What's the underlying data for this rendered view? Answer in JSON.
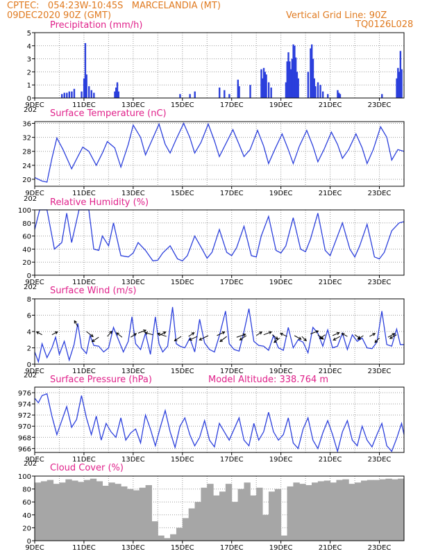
{
  "header": {
    "line1": "CPTEC:   054:23W-10:45S   MARCELANDIA (MT)",
    "line2": "09DEC2020 90Z (GMT)",
    "grid_note": "Vertical Grid Line: 90Z",
    "run_code": "TQ0126L028"
  },
  "colors": {
    "line": "#2b3fdc",
    "cloud": "#a6a6a6",
    "title": "#e0208a",
    "header": "#e07a1f"
  },
  "chart_data": [
    {
      "type": "bar",
      "title": "Precipitation (mm/h)",
      "ylim": [
        0,
        5
      ],
      "yticks": [
        0,
        1,
        2,
        3,
        4,
        5
      ],
      "xtick_labels": [
        "9DEC",
        "11DEC",
        "13DEC",
        "15DEC",
        "17DEC",
        "19DEC",
        "21DEC",
        "23DEC"
      ],
      "x_start_label": "202",
      "x_range_days": [
        9.0,
        24.0
      ],
      "x": [
        10.1,
        10.2,
        10.3,
        10.4,
        10.5,
        10.6,
        10.9,
        11.0,
        11.05,
        11.1,
        11.2,
        11.3,
        11.4,
        12.25,
        12.3,
        12.35,
        12.4,
        14.9,
        15.3,
        15.5,
        16.5,
        16.7,
        16.9,
        17.25,
        17.3,
        17.75,
        18.2,
        18.25,
        18.3,
        18.35,
        18.4,
        18.5,
        18.6,
        19.2,
        19.25,
        19.3,
        19.35,
        19.4,
        19.45,
        19.5,
        19.55,
        19.6,
        19.65,
        19.7,
        20.1,
        20.2,
        20.25,
        20.3,
        20.35,
        20.4,
        20.5,
        20.6,
        20.7,
        20.9,
        21.3,
        21.35,
        21.4,
        23.1,
        23.7,
        23.75,
        23.8,
        23.85,
        23.9
      ],
      "values": [
        0.3,
        0.4,
        0.4,
        0.5,
        0.5,
        0.7,
        0.5,
        1.5,
        4.2,
        1.8,
        0.9,
        0.6,
        0.4,
        0.5,
        0.8,
        1.2,
        0.5,
        0.3,
        0.3,
        0.5,
        0.8,
        0.6,
        0.3,
        1.4,
        0.9,
        1.0,
        2.2,
        1.5,
        2.3,
        2.0,
        1.8,
        1.2,
        0.8,
        1.2,
        2.8,
        3.5,
        2.8,
        2.2,
        3.0,
        4.1,
        4.0,
        3.1,
        2.0,
        1.5,
        2.0,
        3.8,
        4.1,
        3.0,
        1.5,
        0.9,
        1.2,
        1.0,
        0.5,
        0.3,
        0.6,
        0.4,
        0.3,
        0.3,
        1.5,
        2.3,
        2.0,
        3.6,
        2.2
      ]
    },
    {
      "type": "line",
      "title": "Surface Temperature (nC)",
      "ylim": [
        18,
        36.5
      ],
      "yticks": [
        20,
        24,
        28,
        32,
        36
      ],
      "xtick_labels": [
        "9DEC",
        "11DEC",
        "13DEC",
        "15DEC",
        "17DEC",
        "19DEC",
        "21DEC",
        "23DEC"
      ],
      "x_start_label": "202",
      "x_range_days": [
        9.0,
        24.0
      ],
      "x": [
        9.0,
        9.3,
        9.5,
        9.7,
        9.9,
        10.15,
        10.5,
        10.75,
        10.95,
        11.2,
        11.5,
        11.75,
        11.95,
        12.25,
        12.5,
        12.8,
        13.0,
        13.3,
        13.5,
        13.75,
        14.05,
        14.3,
        14.5,
        14.75,
        15.05,
        15.3,
        15.5,
        15.75,
        16.05,
        16.3,
        16.5,
        16.75,
        17.05,
        17.3,
        17.5,
        17.75,
        18.05,
        18.3,
        18.5,
        18.75,
        19.05,
        19.3,
        19.5,
        19.75,
        20.05,
        20.3,
        20.5,
        20.75,
        21.05,
        21.3,
        21.5,
        21.75,
        22.05,
        22.3,
        22.5,
        22.75,
        23.05,
        23.3,
        23.5,
        23.75,
        24.0
      ],
      "values": [
        20.5,
        19.5,
        19.2,
        26.0,
        31.8,
        28.5,
        23.0,
        26.5,
        29.2,
        28.0,
        24.0,
        27.5,
        30.8,
        29.0,
        23.5,
        30.0,
        35.5,
        32.0,
        27.0,
        31.0,
        35.8,
        30.0,
        27.5,
        31.5,
        36.0,
        32.0,
        27.5,
        30.5,
        35.8,
        31.0,
        26.5,
        30.0,
        34.2,
        30.0,
        26.5,
        28.5,
        34.0,
        29.5,
        24.5,
        28.5,
        33.0,
        28.5,
        24.5,
        29.5,
        34.0,
        29.5,
        25.0,
        28.5,
        33.5,
        30.0,
        26.0,
        28.5,
        33.0,
        29.0,
        24.5,
        28.5,
        35.0,
        32.0,
        25.5,
        28.5,
        28.0
      ]
    },
    {
      "type": "line",
      "title": "Relative Humidity (%)",
      "ylim": [
        0,
        100
      ],
      "yticks": [
        0,
        20,
        40,
        60,
        80,
        100
      ],
      "xtick_labels": [
        "9DEC",
        "11DEC",
        "13DEC",
        "15DEC",
        "17DEC",
        "19DEC",
        "21DEC",
        "23DEC"
      ],
      "x_start_label": "202",
      "x_range_days": [
        9.0,
        24.0
      ],
      "x": [
        9.0,
        9.2,
        9.5,
        9.8,
        10.1,
        10.3,
        10.5,
        10.8,
        11.0,
        11.2,
        11.4,
        11.6,
        11.75,
        12.0,
        12.2,
        12.5,
        12.8,
        13.0,
        13.2,
        13.5,
        13.8,
        14.0,
        14.2,
        14.5,
        14.8,
        15.0,
        15.2,
        15.5,
        15.8,
        16.0,
        16.2,
        16.5,
        16.8,
        17.0,
        17.2,
        17.5,
        17.8,
        18.0,
        18.2,
        18.5,
        18.8,
        19.0,
        19.2,
        19.5,
        19.8,
        20.0,
        20.2,
        20.5,
        20.8,
        21.0,
        21.2,
        21.5,
        21.8,
        22.0,
        22.2,
        22.5,
        22.8,
        23.0,
        23.2,
        23.5,
        23.8,
        24.0
      ],
      "values": [
        70,
        100,
        100,
        40,
        50,
        95,
        50,
        100,
        100,
        100,
        40,
        38,
        60,
        45,
        80,
        30,
        28,
        34,
        50,
        38,
        22,
        23,
        34,
        45,
        25,
        22,
        30,
        60,
        40,
        26,
        35,
        70,
        35,
        30,
        42,
        75,
        30,
        28,
        60,
        90,
        38,
        34,
        45,
        88,
        40,
        36,
        55,
        95,
        38,
        30,
        50,
        80,
        40,
        28,
        45,
        78,
        28,
        25,
        35,
        68,
        80,
        82
      ]
    },
    {
      "type": "line",
      "title": "Surface Wind (m/s)",
      "ylim": [
        0,
        8
      ],
      "yticks": [
        0,
        2,
        4,
        6,
        8
      ],
      "xtick_labels": [
        "9DEC",
        "11DEC",
        "13DEC",
        "15DEC",
        "17DEC",
        "19DEC",
        "21DEC",
        "23DEC"
      ],
      "x_start_label": "202",
      "x_range_days": [
        9.0,
        24.0
      ],
      "x": [
        9.0,
        9.15,
        9.3,
        9.5,
        9.7,
        9.85,
        10.0,
        10.2,
        10.4,
        10.6,
        10.75,
        10.9,
        11.1,
        11.25,
        11.4,
        11.6,
        11.8,
        12.0,
        12.2,
        12.4,
        12.6,
        12.8,
        12.95,
        13.1,
        13.3,
        13.5,
        13.7,
        13.9,
        14.05,
        14.2,
        14.4,
        14.6,
        14.75,
        14.9,
        15.1,
        15.3,
        15.5,
        15.7,
        15.9,
        16.1,
        16.3,
        16.5,
        16.75,
        16.9,
        17.1,
        17.3,
        17.5,
        17.7,
        17.9,
        18.1,
        18.3,
        18.5,
        18.7,
        18.9,
        19.1,
        19.3,
        19.5,
        19.7,
        19.9,
        20.1,
        20.3,
        20.5,
        20.7,
        20.9,
        21.1,
        21.3,
        21.5,
        21.7,
        21.9,
        22.1,
        22.3,
        22.5,
        22.7,
        22.9,
        23.1,
        23.3,
        23.5,
        23.7,
        23.85,
        24.0
      ],
      "values": [
        1.5,
        0.3,
        2.5,
        0.8,
        2.0,
        3.3,
        1.2,
        2.8,
        0.5,
        2.4,
        5.0,
        2.0,
        1.3,
        3.5,
        2.3,
        2.2,
        1.5,
        2.0,
        4.5,
        3.0,
        1.5,
        2.8,
        5.8,
        2.5,
        1.8,
        3.8,
        1.2,
        5.8,
        2.5,
        1.5,
        2.2,
        7.0,
        2.5,
        2.2,
        2.0,
        3.2,
        1.5,
        5.5,
        2.6,
        1.8,
        1.5,
        3.5,
        6.5,
        2.5,
        1.8,
        1.6,
        4.0,
        6.8,
        2.8,
        2.3,
        2.2,
        1.7,
        3.5,
        2.0,
        1.7,
        4.5,
        2.0,
        3.0,
        2.7,
        1.4,
        4.5,
        3.8,
        2.2,
        4.2,
        2.0,
        2.2,
        3.8,
        1.8,
        3.6,
        2.8,
        3.2,
        2.0,
        1.9,
        2.7,
        6.5,
        2.4,
        2.2,
        4.3,
        2.4,
        2.4
      ],
      "arrows": {
        "x": [
          9.3,
          9.7,
          10.75,
          11.1,
          11.6,
          11.95,
          12.55,
          12.9,
          13.2,
          13.8,
          14.05,
          14.35,
          14.95,
          15.25,
          15.6,
          16.05,
          16.4,
          16.8,
          17.2,
          17.6,
          18.0,
          18.3,
          18.65,
          18.95,
          19.25,
          19.55,
          19.85,
          20.2,
          20.5,
          20.8,
          21.1,
          21.4,
          21.7,
          22.0,
          22.35,
          22.6,
          23.0,
          23.35,
          23.7
        ],
        "y": [
          3.6,
          3.6,
          4.6,
          4.0,
          3.3,
          3.4,
          3.3,
          3.3,
          3.8,
          3.6,
          3.5,
          3.4,
          3.4,
          3.4,
          3.4,
          3.5,
          3.5,
          3.4,
          3.3,
          3.5,
          3.5,
          3.6,
          3.6,
          3.2,
          3.4,
          3.5,
          3.4,
          3.7,
          3.6,
          3.6,
          3.5,
          3.4,
          3.4,
          3.6,
          3.5,
          3.4,
          3.2,
          3.3,
          3.6
        ],
        "dx": [
          -0.5,
          0.5,
          -0.3,
          0.6,
          -0.6,
          0.4,
          -0.5,
          0.5,
          0.7,
          -0.7,
          0.6,
          -0.8,
          -0.6,
          0.5,
          -0.7,
          -0.8,
          0.7,
          -0.6,
          0.8,
          -0.6,
          0.5,
          0.7,
          0.5,
          -0.5,
          -0.6,
          0.6,
          0.4,
          0.7,
          0.5,
          -0.5,
          0.6,
          -0.6,
          -0.5,
          0.5,
          -0.5,
          0.5,
          -0.4,
          0.6,
          -0.6
        ],
        "dy": [
          0.4,
          0.4,
          0.8,
          -0.7,
          -0.6,
          0.7,
          0.6,
          0.5,
          0.4,
          0.3,
          0.5,
          0.4,
          -0.6,
          0.5,
          -0.5,
          -0.6,
          0.5,
          -0.7,
          0.4,
          -0.6,
          0.5,
          0.4,
          -0.6,
          -0.6,
          0.4,
          -0.5,
          -0.6,
          0.4,
          -0.6,
          -0.5,
          0.4,
          -0.5,
          0.4,
          -0.5,
          -0.5,
          0.4,
          -0.6,
          0.5,
          -0.5
        ]
      }
    },
    {
      "type": "line",
      "title": "Surface Pressure (hPa)",
      "subtitle": "Model Altitude: 338.764 m",
      "ylim": [
        965.3,
        977
      ],
      "yticks": [
        966,
        968,
        970,
        972,
        974,
        976
      ],
      "xtick_labels": [
        "9DEC",
        "11DEC",
        "13DEC",
        "15DEC",
        "17DEC",
        "19DEC",
        "21DEC",
        "23DEC"
      ],
      "x_start_label": "202",
      "x_range_days": [
        9.0,
        24.0
      ],
      "x": [
        9.0,
        9.15,
        9.3,
        9.5,
        9.7,
        9.9,
        10.1,
        10.3,
        10.5,
        10.7,
        10.9,
        11.1,
        11.3,
        11.5,
        11.7,
        11.9,
        12.1,
        12.3,
        12.5,
        12.7,
        12.9,
        13.1,
        13.3,
        13.5,
        13.7,
        13.9,
        14.1,
        14.3,
        14.5,
        14.7,
        14.9,
        15.1,
        15.3,
        15.5,
        15.7,
        15.9,
        16.1,
        16.3,
        16.5,
        16.7,
        16.9,
        17.1,
        17.3,
        17.5,
        17.7,
        17.9,
        18.1,
        18.3,
        18.5,
        18.7,
        18.9,
        19.1,
        19.3,
        19.5,
        19.7,
        19.9,
        20.1,
        20.3,
        20.5,
        20.7,
        20.9,
        21.1,
        21.3,
        21.5,
        21.7,
        21.9,
        22.1,
        22.3,
        22.5,
        22.7,
        22.9,
        23.1,
        23.3,
        23.5,
        23.7,
        23.9,
        24.0
      ],
      "values": [
        975.0,
        974.2,
        975.5,
        975.8,
        971.8,
        968.5,
        971.0,
        973.5,
        969.8,
        971.2,
        975.5,
        971.5,
        968.5,
        971.8,
        967.5,
        970.5,
        969.0,
        968.0,
        971.5,
        967.5,
        968.8,
        969.5,
        967.0,
        972.0,
        969.5,
        966.5,
        969.8,
        972.8,
        969.0,
        966.2,
        970.0,
        971.5,
        968.5,
        966.5,
        968.0,
        971.0,
        967.5,
        966.3,
        970.5,
        969.0,
        967.5,
        969.5,
        971.5,
        967.5,
        966.5,
        970.5,
        967.5,
        969.0,
        972.5,
        969.0,
        967.5,
        968.5,
        971.5,
        967.0,
        966.0,
        969.5,
        971.5,
        967.5,
        966.0,
        968.8,
        971.0,
        968.5,
        965.5,
        969.0,
        971.0,
        967.5,
        966.5,
        970.0,
        967.5,
        966.3,
        968.5,
        970.5,
        966.5,
        965.5,
        967.8,
        970.5,
        968.5
      ]
    },
    {
      "type": "bar",
      "title": "Cloud Cover (%)",
      "ylim": [
        0,
        100
      ],
      "yticks": [
        0,
        20,
        40,
        60,
        80,
        100
      ],
      "xtick_labels": [
        "9DEC",
        "11DEC",
        "13DEC",
        "15DEC",
        "17DEC",
        "19DEC",
        "21DEC",
        "23DEC"
      ],
      "x_range_days": [
        9.0,
        24.0
      ],
      "x": [
        9.0,
        9.25,
        9.5,
        9.75,
        10.0,
        10.25,
        10.5,
        10.75,
        11.0,
        11.25,
        11.5,
        11.75,
        12.0,
        12.25,
        12.5,
        12.75,
        13.0,
        13.25,
        13.5,
        13.75,
        14.0,
        14.25,
        14.5,
        14.75,
        15.0,
        15.25,
        15.5,
        15.75,
        16.0,
        16.25,
        16.5,
        16.75,
        17.0,
        17.25,
        17.5,
        17.75,
        18.0,
        18.25,
        18.5,
        18.75,
        19.0,
        19.25,
        19.5,
        19.75,
        20.0,
        20.25,
        20.5,
        20.75,
        21.0,
        21.25,
        21.5,
        21.75,
        22.0,
        22.25,
        22.5,
        22.75,
        23.0,
        23.25,
        23.5,
        23.75
      ],
      "values": [
        90,
        92,
        94,
        88,
        90,
        95,
        93,
        91,
        94,
        96,
        92,
        85,
        90,
        88,
        84,
        80,
        78,
        82,
        86,
        30,
        8,
        4,
        10,
        20,
        35,
        50,
        60,
        82,
        88,
        70,
        76,
        88,
        60,
        80,
        90,
        70,
        82,
        40,
        76,
        80,
        8,
        84,
        90,
        88,
        86,
        90,
        92,
        93,
        90,
        94,
        95,
        88,
        90,
        93,
        94,
        94,
        95,
        96,
        95,
        96
      ]
    }
  ]
}
